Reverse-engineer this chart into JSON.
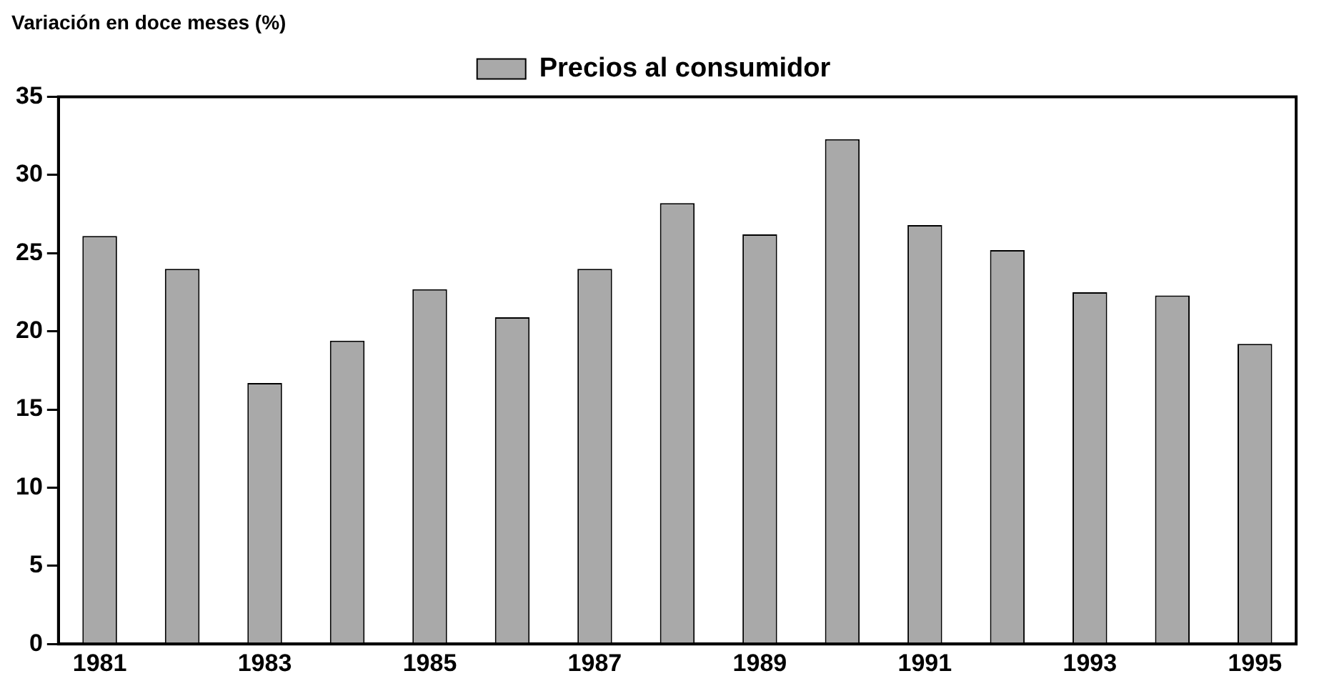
{
  "chart_data": {
    "type": "bar",
    "title": "Variación en doce meses (%)",
    "categories": [
      "1981",
      null,
      "1983",
      null,
      "1985",
      null,
      "1987",
      null,
      "1989",
      null,
      "1991",
      null,
      "1993",
      null,
      "1995"
    ],
    "series": [
      {
        "name": "Precios al consumidor",
        "color": "#a9a9a9",
        "values": [
          26.1,
          24.0,
          16.7,
          19.4,
          22.7,
          20.9,
          24.0,
          28.2,
          26.2,
          32.3,
          26.8,
          25.2,
          22.5,
          22.3,
          19.2
        ]
      }
    ],
    "ylim": [
      0,
      35
    ],
    "yticks": [
      0,
      5,
      10,
      15,
      20,
      25,
      30,
      35
    ],
    "grid": false,
    "legend": "top"
  }
}
